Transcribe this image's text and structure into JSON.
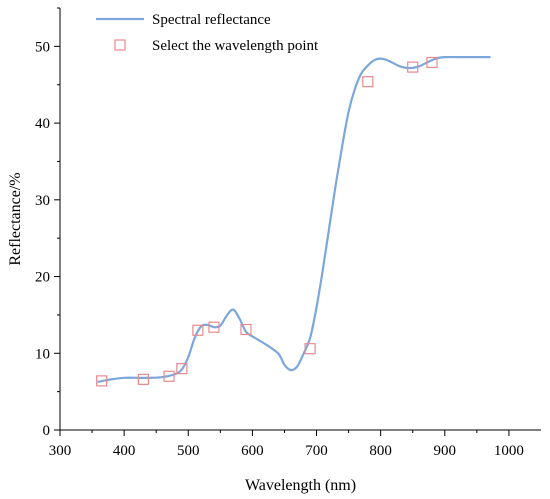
{
  "chart_data": {
    "type": "line",
    "xlabel": "Wavelength (nm)",
    "ylabel": "Reflectance/%",
    "xlim": [
      300,
      1050
    ],
    "ylim": [
      0,
      55
    ],
    "xticks": [
      300,
      400,
      500,
      600,
      700,
      800,
      900,
      1000
    ],
    "yticks": [
      0,
      10,
      20,
      30,
      40,
      50
    ],
    "grid": false,
    "legend_position": "top-left",
    "series": [
      {
        "name": "Spectral reflectance",
        "kind": "line",
        "color": "#7ba7dc",
        "x": [
          360,
          380,
          400,
          420,
          440,
          460,
          480,
          490,
          500,
          510,
          520,
          530,
          540,
          550,
          560,
          570,
          580,
          590,
          600,
          620,
          640,
          650,
          660,
          670,
          680,
          690,
          700,
          710,
          720,
          730,
          740,
          750,
          760,
          770,
          780,
          790,
          800,
          810,
          820,
          830,
          840,
          850,
          860,
          870,
          880,
          890,
          900,
          920,
          940,
          970
        ],
        "y": [
          6.3,
          6.6,
          6.8,
          6.8,
          6.8,
          6.9,
          7.3,
          7.9,
          9.5,
          12.0,
          13.5,
          13.7,
          13.4,
          13.6,
          14.9,
          15.7,
          14.5,
          12.8,
          12.2,
          11.2,
          10.0,
          8.5,
          7.8,
          8.3,
          10.0,
          12.0,
          16.0,
          21.0,
          26.5,
          32.0,
          37.0,
          41.5,
          44.5,
          46.5,
          47.5,
          48.2,
          48.4,
          48.2,
          47.8,
          47.4,
          47.2,
          47.2,
          47.4,
          47.8,
          48.2,
          48.5,
          48.6,
          48.6,
          48.6,
          48.6
        ]
      },
      {
        "name": "Select the wavelength point",
        "kind": "marker",
        "color": "#e8898e",
        "x": [
          365,
          430,
          470,
          490,
          515,
          540,
          590,
          690,
          780,
          850,
          880
        ],
        "y": [
          6.4,
          6.6,
          7.0,
          8.0,
          13.0,
          13.4,
          13.1,
          10.6,
          45.4,
          47.3,
          47.9
        ]
      }
    ]
  }
}
